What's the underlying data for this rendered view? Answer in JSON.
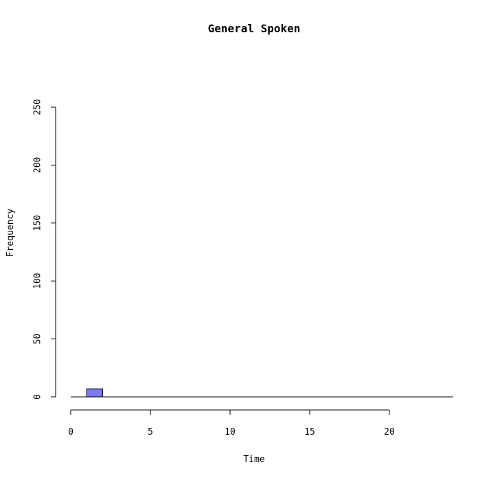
{
  "chart_data": {
    "type": "bar",
    "title": "General Spoken",
    "xlabel": "Time",
    "ylabel": "Frequency",
    "bin_width": 1,
    "x": [
      1
    ],
    "values": [
      7
    ],
    "baseline_range": [
      0,
      24
    ],
    "xlim": [
      0,
      20
    ],
    "ylim": [
      0,
      250
    ],
    "xticks": [
      0,
      5,
      10,
      15,
      20
    ],
    "yticks": [
      0,
      50,
      100,
      150,
      200,
      250
    ],
    "bar_color": "#7b7bef",
    "bar_border": "#000000",
    "grid": false
  }
}
